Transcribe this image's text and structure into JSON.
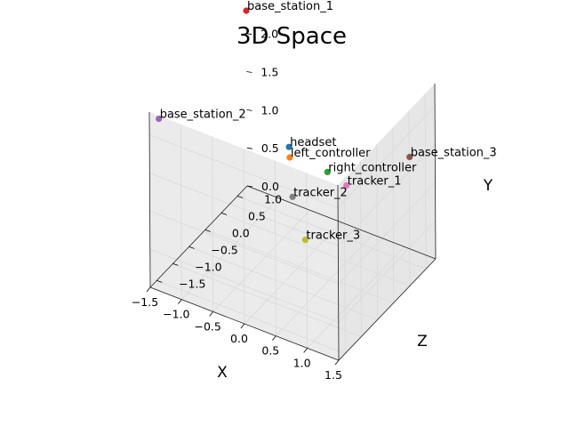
{
  "chart_data": {
    "type": "scatter3d",
    "title": "3D Space",
    "xlabel": "X",
    "ylabel": "Y",
    "zlabel": "Z",
    "xlim": [
      -1.5,
      1.5
    ],
    "ylim": [
      0.0,
      2.3
    ],
    "zlim": [
      -1.7,
      1.3
    ],
    "xticks": [
      "−1.5",
      "−1.0",
      "−0.5",
      "0.0",
      "0.5",
      "1.0",
      "1.5"
    ],
    "yticks": [
      "0.0",
      "0.5",
      "1.0",
      "1.5",
      "2.0"
    ],
    "zticks": [
      "−1.5",
      "−1.0",
      "−0.5",
      "0.0",
      "0.5",
      "1.0"
    ],
    "grid": true,
    "points": [
      {
        "label": "headset",
        "x": 0.0,
        "y": 1.7,
        "z": -0.3,
        "color": "#1f77b4"
      },
      {
        "label": "left_controller",
        "x": -0.3,
        "y": 1.2,
        "z": 0.3,
        "color": "#ff7f0e"
      },
      {
        "label": "right_controller",
        "x": 0.3,
        "y": 1.2,
        "z": 0.3,
        "color": "#2ca02c"
      },
      {
        "label": "base_station_1",
        "x": -1.5,
        "y": 2.3,
        "z": 1.3,
        "color": "#d62728"
      },
      {
        "label": "base_station_2",
        "x": -1.4,
        "y": 2.2,
        "z": -1.6,
        "color": "#9467bd"
      },
      {
        "label": "base_station_3",
        "x": 1.3,
        "y": 1.45,
        "z": 0.9,
        "color": "#8c564b"
      },
      {
        "label": "tracker_1",
        "x": 0.5,
        "y": 1.0,
        "z": 0.5,
        "color": "#e377c2"
      },
      {
        "label": "tracker_2",
        "x": 0.0,
        "y": 1.0,
        "z": -0.2,
        "color": "#7f7f7f"
      },
      {
        "label": "tracker_3",
        "x": 0.2,
        "y": 0.5,
        "z": -0.2,
        "color": "#bcbd22"
      }
    ]
  }
}
